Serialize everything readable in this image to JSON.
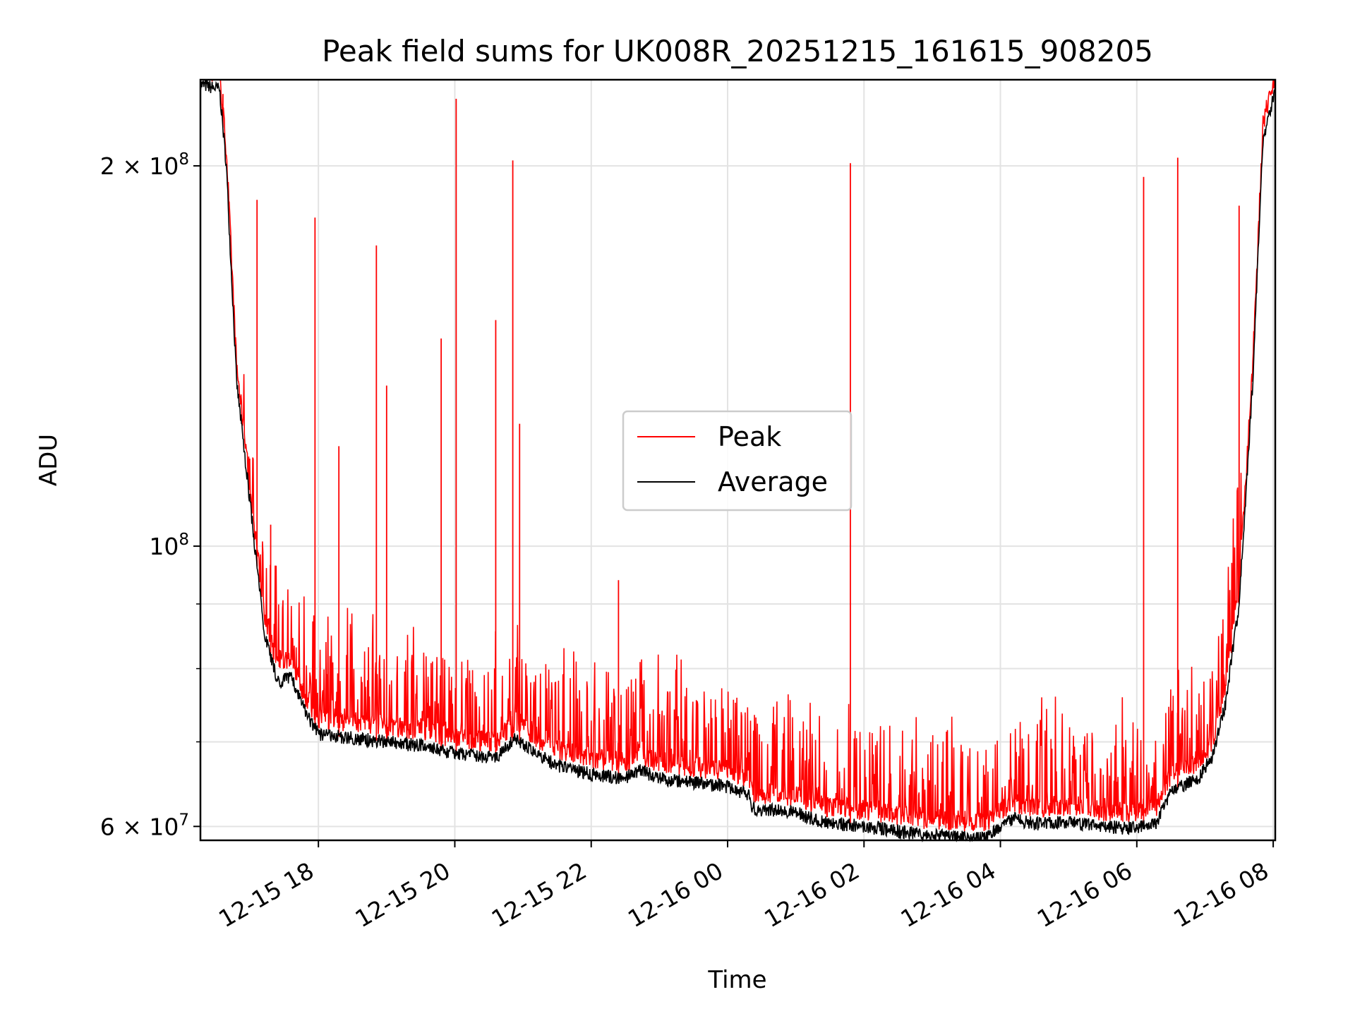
{
  "chart_data": {
    "type": "line",
    "title": "Peak field sums for UK008R_20251215_161615_908205",
    "xlabel": "Time",
    "ylabel": "ADU",
    "yscale": "log",
    "grid": true,
    "legend_placement": "center",
    "x_range_hours": [
      16.27,
      32.03
    ],
    "ylim": [
      58500000,
      234000000
    ],
    "x_ticks": [
      {
        "hour": 18,
        "label": "12-15 18"
      },
      {
        "hour": 20,
        "label": "12-15 20"
      },
      {
        "hour": 22,
        "label": "12-15 22"
      },
      {
        "hour": 24,
        "label": "12-16 00"
      },
      {
        "hour": 26,
        "label": "12-16 02"
      },
      {
        "hour": 28,
        "label": "12-16 04"
      },
      {
        "hour": 30,
        "label": "12-16 06"
      },
      {
        "hour": 32,
        "label": "12-16 08"
      }
    ],
    "y_ticks": [
      {
        "value": 60000000,
        "label": "6 × 10",
        "exp": "7"
      },
      {
        "value": 100000000,
        "label": "10",
        "exp": "8"
      },
      {
        "value": 200000000,
        "label": "2 × 10",
        "exp": "8"
      }
    ],
    "y_minor_gridlines": [
      70000000,
      80000000,
      90000000
    ],
    "average_baseline": {
      "hours": [
        16.27,
        16.55,
        16.65,
        16.8,
        17.0,
        17.2,
        17.4,
        17.6,
        17.8,
        18.0,
        18.5,
        19.0,
        19.5,
        20.0,
        20.6,
        20.9,
        21.1,
        21.5,
        22.0,
        22.5,
        22.7,
        23.0,
        23.5,
        24.0,
        24.33,
        24.35,
        25.0,
        25.4,
        26.0,
        26.5,
        27.0,
        27.5,
        27.8,
        28.0,
        28.2,
        28.5,
        29.0,
        29.5,
        29.9,
        30.3,
        30.5,
        30.9,
        31.1,
        31.3,
        31.5,
        31.7,
        31.85,
        32.03
      ],
      "values": [
        232000000,
        230000000,
        200000000,
        135000000,
        108000000,
        86000000,
        78000000,
        79000000,
        74000000,
        71000000,
        70500000,
        70000000,
        69500000,
        68500000,
        68000000,
        70500000,
        69000000,
        67000000,
        66000000,
        65500000,
        66500000,
        65500000,
        65000000,
        64500000,
        63500000,
        62000000,
        61500000,
        60500000,
        60000000,
        59500000,
        59000000,
        58800000,
        58700000,
        60000000,
        60800000,
        60300000,
        60500000,
        60000000,
        59800000,
        60500000,
        64000000,
        65500000,
        68000000,
        75000000,
        90000000,
        135000000,
        210000000,
        230000000
      ]
    },
    "peak_spikes": [
      {
        "hour": 16.6,
        "value": 228000000
      },
      {
        "hour": 17.1,
        "value": 188000000
      },
      {
        "hour": 17.3,
        "value": 104000000
      },
      {
        "hour": 17.95,
        "value": 182000000
      },
      {
        "hour": 18.3,
        "value": 120000000
      },
      {
        "hour": 18.85,
        "value": 173000000
      },
      {
        "hour": 19.0,
        "value": 134000000
      },
      {
        "hour": 19.8,
        "value": 146000000
      },
      {
        "hour": 20.02,
        "value": 226000000
      },
      {
        "hour": 20.6,
        "value": 151000000
      },
      {
        "hour": 20.85,
        "value": 202000000
      },
      {
        "hour": 20.95,
        "value": 125000000
      },
      {
        "hour": 22.4,
        "value": 94000000
      },
      {
        "hour": 25.8,
        "value": 201000000
      },
      {
        "hour": 30.1,
        "value": 196000000
      },
      {
        "hour": 30.6,
        "value": 203000000
      },
      {
        "hour": 31.5,
        "value": 186000000
      }
    ],
    "series": [
      {
        "name": "Peak",
        "color": "#ff0000"
      },
      {
        "name": "Average",
        "color": "#000000"
      }
    ]
  }
}
